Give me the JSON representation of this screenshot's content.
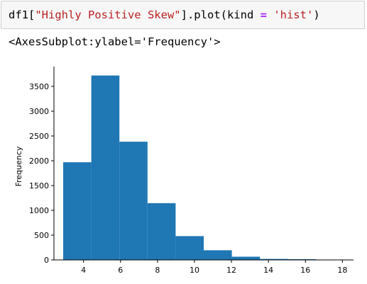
{
  "cell": {
    "code_prefix": "df1[",
    "code_arg": "\"Highly Positive Skew\"",
    "code_mid": "].plot(kind ",
    "code_op": "=",
    "code_sp": " ",
    "code_kind": "'hist'",
    "code_suffix": ")"
  },
  "output": {
    "repr": "<AxesSubplot:ylabel='Frequency'>"
  },
  "colors": {
    "bar": "#1f77b4",
    "axis": "#000000"
  },
  "chart_data": {
    "type": "bar",
    "histogram": true,
    "bins": [
      {
        "start": 2.9,
        "end": 4.42,
        "count": 1970
      },
      {
        "start": 4.42,
        "end": 5.94,
        "count": 3720
      },
      {
        "start": 5.94,
        "end": 7.46,
        "count": 2385
      },
      {
        "start": 7.46,
        "end": 8.98,
        "count": 1145
      },
      {
        "start": 8.98,
        "end": 10.5,
        "count": 480
      },
      {
        "start": 10.5,
        "end": 12.02,
        "count": 195
      },
      {
        "start": 12.02,
        "end": 13.54,
        "count": 65
      },
      {
        "start": 13.54,
        "end": 15.06,
        "count": 20
      },
      {
        "start": 15.06,
        "end": 16.58,
        "count": 15
      },
      {
        "start": 16.58,
        "end": 18.1,
        "count": 3
      }
    ],
    "xlim": [
      2.4,
      18.6
    ],
    "ylim": [
      0,
      3900
    ],
    "xticks": [
      4,
      6,
      8,
      10,
      12,
      14,
      16,
      18
    ],
    "yticks": [
      0,
      500,
      1000,
      1500,
      2000,
      2500,
      3000,
      3500
    ],
    "ylabel": "Frequency",
    "xlabel": "",
    "title": "",
    "grid": false,
    "legend": "none"
  }
}
